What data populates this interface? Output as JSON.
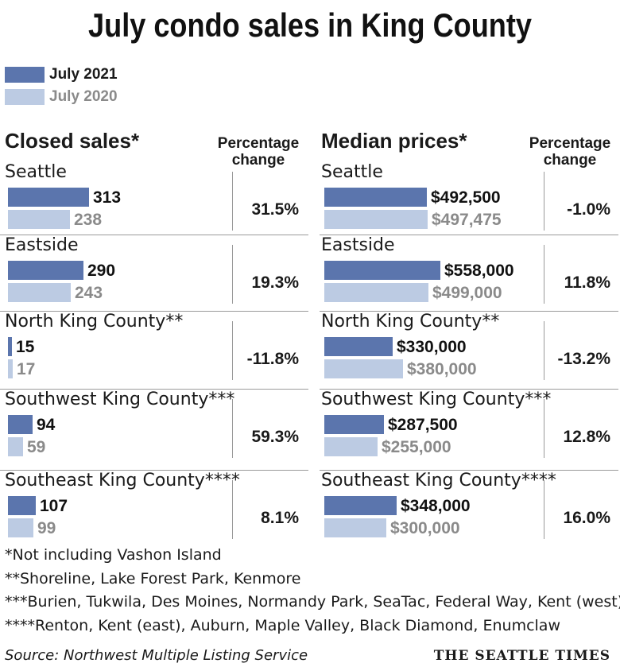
{
  "title": "July condo sales in King County",
  "legend": [
    {
      "label": "July 2021",
      "color": "#5b75ad"
    },
    {
      "label": "July 2020",
      "color": "#bccbe3"
    }
  ],
  "chart_data": [
    {
      "type": "bar",
      "title": "Closed sales*",
      "pct_header_line1": "Percentage",
      "pct_header_line2": "change",
      "categories": [
        "Seattle",
        "Eastside",
        "North King County**",
        "Southwest King County***",
        "Southeast King County****"
      ],
      "series": [
        {
          "name": "July 2021",
          "values": [
            313,
            290,
            15,
            94,
            107
          ],
          "labels": [
            "313",
            "290",
            "15",
            "94",
            "107"
          ]
        },
        {
          "name": "July 2020",
          "values": [
            238,
            243,
            17,
            59,
            99
          ],
          "labels": [
            "238",
            "243",
            "17",
            "59",
            "99"
          ]
        }
      ],
      "pct_change": [
        "31.5%",
        "19.3%",
        "-11.8%",
        "59.3%",
        "8.1%"
      ],
      "xlim": [
        0,
        313
      ]
    },
    {
      "type": "bar",
      "title": "Median prices*",
      "pct_header_line1": "Percentage",
      "pct_header_line2": "change",
      "categories": [
        "Seattle",
        "Eastside",
        "North King County**",
        "Southwest King County***",
        "Southeast King County****"
      ],
      "series": [
        {
          "name": "July 2021",
          "values": [
            492500,
            558000,
            330000,
            287500,
            348000
          ],
          "labels": [
            "$492,500",
            "$558,000",
            "$330,000",
            "$287,500",
            "$348,000"
          ]
        },
        {
          "name": "July 2020",
          "values": [
            497475,
            499000,
            380000,
            255000,
            300000
          ],
          "labels": [
            "$497,475",
            "$499,000",
            "$380,000",
            "$255,000",
            "$300,000"
          ]
        }
      ],
      "pct_change": [
        "-1.0%",
        "11.8%",
        "-13.2%",
        "12.8%",
        "16.0%"
      ],
      "xlim": [
        0,
        558000
      ]
    }
  ],
  "notes": [
    "*Not including Vashon Island",
    "**Shoreline, Lake Forest Park, Kenmore",
    "***Burien, Tukwila, Des Moines, Normandy Park, SeaTac, Federal Way, Kent (west)",
    "****Renton, Kent (east), Auburn, Maple Valley, Black Diamond, Enumclaw"
  ],
  "source": "Source: Northwest Multiple Listing Service",
  "brand": "THE SEATTLE TIMES"
}
